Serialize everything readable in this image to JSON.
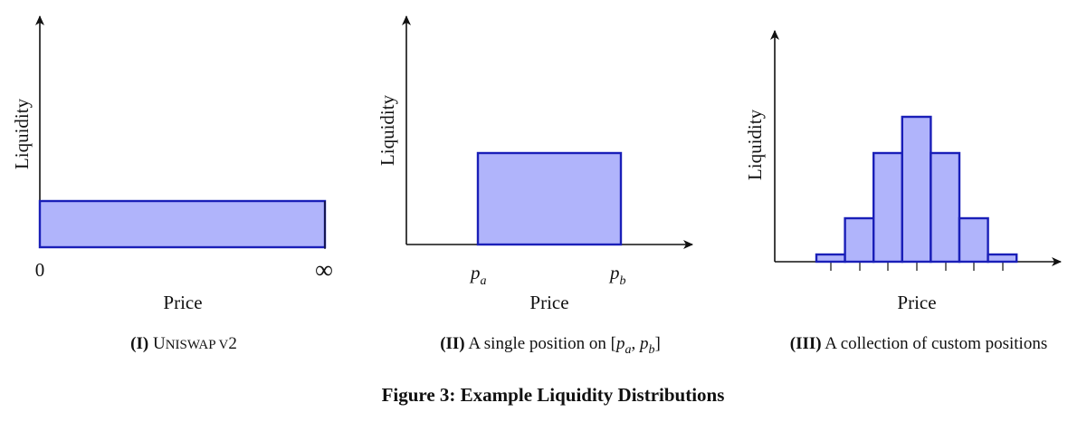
{
  "figure_title": "Figure 3: Example Liquidity Distributions",
  "chart_data": [
    {
      "type": "bar",
      "ylabel": "Liquidity",
      "xlabel": "Price",
      "x_tick_labels": [
        "0",
        "∞"
      ],
      "bars": [
        {
          "from": "0",
          "to": "∞",
          "value": 1
        }
      ],
      "caption": {
        "label": "(I)",
        "text": "Uniswap v2"
      }
    },
    {
      "type": "bar",
      "ylabel": "Liquidity",
      "xlabel": "Price",
      "x_tick_labels": [
        "p_a",
        "p_b"
      ],
      "bars": [
        {
          "from": "p_a",
          "to": "p_b",
          "value": 1
        }
      ],
      "caption": {
        "label": "(II)",
        "text": "A single position on [p_a, p_b]"
      }
    },
    {
      "type": "bar",
      "ylabel": "Liquidity",
      "xlabel": "Price",
      "x_tick_labels": [],
      "values": [
        0.05,
        0.3,
        0.75,
        1.0,
        0.75,
        0.3,
        0.05
      ],
      "caption": {
        "label": "(III)",
        "text": "A collection of custom positions"
      }
    }
  ]
}
